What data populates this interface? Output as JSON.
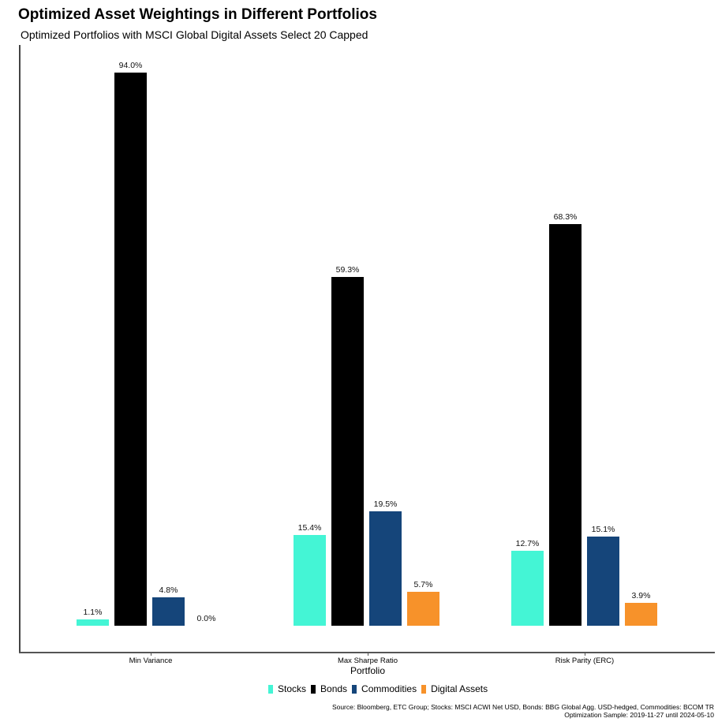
{
  "chart_data": {
    "type": "bar",
    "title": "Optimized Asset Weightings in Different Portfolios",
    "subtitle": "Optimized Portfolios with MSCI Global Digital Assets Select 20 Capped",
    "xlabel": "Portfolio",
    "ylabel": "",
    "categories": [
      "Min Variance",
      "Max Sharpe Ratio",
      "Risk Parity (ERC)"
    ],
    "series": [
      {
        "name": "Stocks",
        "color": "#44F5D5",
        "values": [
          1.1,
          15.4,
          12.7
        ],
        "labels": [
          "1.1%",
          "15.4%",
          "12.7%"
        ]
      },
      {
        "name": "Bonds",
        "color": "#000000",
        "values": [
          94.0,
          59.3,
          68.3
        ],
        "labels": [
          "94.0%",
          "59.3%",
          "68.3%"
        ]
      },
      {
        "name": "Commodities",
        "color": "#15457A",
        "values": [
          4.8,
          19.5,
          15.1
        ],
        "labels": [
          "4.8%",
          "19.5%",
          "15.1%"
        ]
      },
      {
        "name": "Digital Assets",
        "color": "#F7922A",
        "values": [
          0.0,
          5.7,
          3.9
        ],
        "labels": [
          "0.0%",
          "5.7%",
          "3.9%"
        ]
      }
    ],
    "ylim": [
      0,
      100
    ],
    "grid": false,
    "legend_position": "bottom",
    "y_ticks_shown": false
  },
  "source_note": {
    "line1": "Source: Bloomberg, ETC Group; Stocks: MSCI ACWI Net USD, Bonds: BBG Global Agg. USD-hedged, Commodities: BCOM TR",
    "line2": "Optimization Sample: 2019-11-27 until 2024-05-10"
  }
}
